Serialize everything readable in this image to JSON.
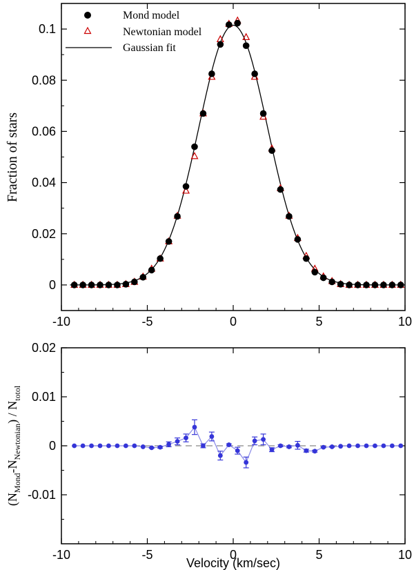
{
  "chart_data": [
    {
      "type": "scatter",
      "xlim": [
        -10,
        10
      ],
      "ylim": [
        -0.01,
        0.11
      ],
      "x_ticks": [
        -10,
        -5,
        0,
        5,
        10
      ],
      "x_tick_labels": [
        "-10",
        "-5",
        "0",
        "5",
        "10"
      ],
      "y_ticks": [
        0,
        0.02,
        0.04,
        0.06,
        0.08,
        0.1
      ],
      "y_tick_labels": [
        "0",
        "0.02",
        "0.04",
        "0.06",
        "0.08",
        "0.1"
      ],
      "ylabel": "Fraction of stars",
      "xlabel": "",
      "grid": false,
      "legend_position": "top-left",
      "legend": {
        "mond": "Mond model",
        "newton": "Newtonian model",
        "fit": "Gaussian fit"
      },
      "x": [
        -9.25,
        -8.75,
        -8.25,
        -7.75,
        -7.25,
        -6.75,
        -6.25,
        -5.75,
        -5.25,
        -4.75,
        -4.25,
        -3.75,
        -3.25,
        -2.75,
        -2.25,
        -1.75,
        -1.25,
        -0.75,
        -0.25,
        0.25,
        0.75,
        1.25,
        1.75,
        2.25,
        2.75,
        3.25,
        3.75,
        4.25,
        4.75,
        5.25,
        5.75,
        6.25,
        6.75,
        7.25,
        7.75,
        8.25,
        8.75,
        9.25,
        9.75
      ],
      "series": [
        {
          "name": "Mond model",
          "marker": "filled-circle",
          "color": "#000000",
          "values": [
            0,
            0,
            0,
            0,
            0,
            0,
            0.0003,
            0.0012,
            0.003,
            0.0058,
            0.0103,
            0.017,
            0.0268,
            0.0385,
            0.054,
            0.067,
            0.0825,
            0.094,
            0.1017,
            0.1023,
            0.0935,
            0.0825,
            0.067,
            0.0525,
            0.0373,
            0.0268,
            0.0178,
            0.0103,
            0.005,
            0.0028,
            0.0012,
            0.0003,
            0,
            0,
            0,
            0,
            0,
            0,
            0
          ]
        },
        {
          "name": "Newtonian model",
          "marker": "open-triangle",
          "color": "#cc0000",
          "values": [
            0,
            0,
            0,
            0,
            0,
            0,
            0.0003,
            0.0012,
            0.0032,
            0.0063,
            0.0103,
            0.017,
            0.027,
            0.0368,
            0.0503,
            0.067,
            0.0813,
            0.096,
            0.102,
            0.1033,
            0.0968,
            0.0813,
            0.0657,
            0.0533,
            0.0378,
            0.027,
            0.0183,
            0.0113,
            0.0063,
            0.0033,
            0.0015,
            0.0003,
            0,
            0,
            0,
            0,
            0,
            0,
            0
          ]
        },
        {
          "name": "Gaussian fit",
          "type": "line",
          "color": "#000000",
          "amplitude": 0.1015,
          "mean": 0,
          "sigma": 2
        }
      ]
    },
    {
      "type": "line",
      "xlim": [
        -10,
        10
      ],
      "ylim": [
        -0.02,
        0.02
      ],
      "x_ticks": [
        -10,
        -5,
        0,
        5,
        10
      ],
      "x_tick_labels": [
        "-10",
        "-5",
        "0",
        "5",
        "10"
      ],
      "y_ticks": [
        -0.01,
        0,
        0.01,
        0.02
      ],
      "y_tick_labels": [
        "-0.01",
        "0",
        "0.01",
        "0.02"
      ],
      "xlabel": "Velocity (km/sec)",
      "ylabel_parts": {
        "open": "(N",
        "sub1": "Mond",
        "mid": "-N",
        "sub2": "Newtonian",
        "close": ") / N",
        "sub3": "totol"
      },
      "grid": false,
      "reference_line": {
        "y": 0,
        "style": "dashed",
        "color": "#888888"
      },
      "x": [
        -9.25,
        -8.75,
        -8.25,
        -7.75,
        -7.25,
        -6.75,
        -6.25,
        -5.75,
        -5.25,
        -4.75,
        -4.25,
        -3.75,
        -3.25,
        -2.75,
        -2.25,
        -1.75,
        -1.25,
        -0.75,
        -0.25,
        0.25,
        0.75,
        1.25,
        1.75,
        2.25,
        2.75,
        3.25,
        3.75,
        4.25,
        4.75,
        5.25,
        5.75,
        6.25,
        6.75,
        7.25,
        7.75,
        8.25,
        8.75,
        9.25,
        9.75
      ],
      "series": [
        {
          "name": "",
          "color": "#3535d8",
          "values": [
            0,
            0,
            0,
            0,
            0,
            0,
            0,
            0,
            -0.0002,
            -0.0004,
            -0.0003,
            0.0003,
            0.0009,
            0.0016,
            0.0038,
            0,
            0.0019,
            -0.002,
            0.0002,
            -0.001,
            -0.0034,
            0.001,
            0.0013,
            -0.0008,
            0,
            -0.0002,
            0.0001,
            -0.001,
            -0.0011,
            -0.0003,
            -0.0002,
            -0.0001,
            0,
            0,
            0,
            0,
            0,
            0,
            0
          ],
          "errors": [
            0,
            0,
            0,
            0,
            0,
            0,
            0,
            0,
            0,
            0.0001,
            0.0002,
            0.0005,
            0.0007,
            0.0008,
            0.0015,
            0.0004,
            0.0009,
            0.0009,
            0.0002,
            0.0007,
            0.0011,
            0.0008,
            0.0011,
            0.0004,
            0.0002,
            0.0002,
            0.0008,
            0.0003,
            0.0002,
            0.0001,
            0.0001,
            0,
            0,
            0,
            0,
            0,
            0,
            0,
            0
          ]
        }
      ]
    }
  ]
}
